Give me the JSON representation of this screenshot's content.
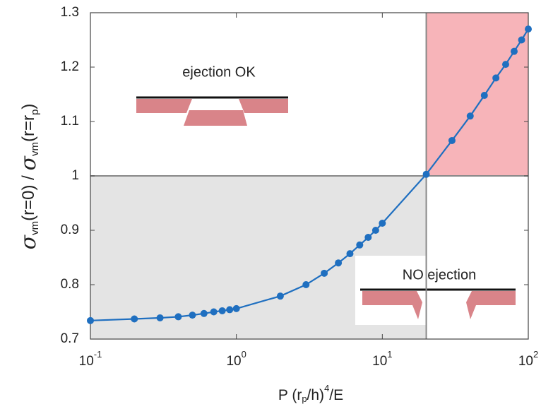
{
  "chart_data": {
    "type": "line",
    "xscale": "log",
    "xlabel": [
      "P (r",
      "p",
      "/h)",
      "4",
      "/E"
    ],
    "ylabel": [
      "σ",
      "vm",
      "(r=0)  / ",
      "σ",
      "vm",
      "(r=r",
      "p",
      ")"
    ],
    "x": [
      0.1,
      0.2,
      0.3,
      0.4,
      0.5,
      0.6,
      0.7,
      0.8,
      0.9,
      1,
      2,
      3,
      4,
      5,
      6,
      7,
      8,
      9,
      10,
      20,
      30,
      40,
      50,
      60,
      70,
      80,
      90,
      100
    ],
    "series": [
      {
        "color": "#1f6fc0",
        "values": [
          0.734,
          0.737,
          0.739,
          0.741,
          0.744,
          0.747,
          0.75,
          0.752,
          0.754,
          0.756,
          0.779,
          0.8,
          0.821,
          0.84,
          0.857,
          0.873,
          0.887,
          0.9,
          0.913,
          1.003,
          1.065,
          1.11,
          1.148,
          1.18,
          1.205,
          1.229,
          1.25,
          1.27
        ]
      }
    ],
    "xlim": [
      0.1,
      100
    ],
    "ylim": [
      0.7,
      1.3
    ],
    "xticks": [
      {
        "value": 0.1,
        "label": [
          "10",
          "-1"
        ]
      },
      {
        "value": 1,
        "label": [
          "10",
          "0"
        ]
      },
      {
        "value": 10,
        "label": [
          "10",
          "1"
        ]
      },
      {
        "value": 100,
        "label": [
          "10",
          "2"
        ]
      }
    ],
    "yticks": [
      0.7,
      0.8,
      0.9,
      1,
      1.1,
      1.2,
      1.3
    ],
    "regions": [
      {
        "xlim": [
          0.1,
          20
        ],
        "ylim": [
          0.7,
          1
        ],
        "color": "#e4e4e4"
      },
      {
        "xlim": [
          20,
          100
        ],
        "ylim": [
          1,
          1.3
        ],
        "color": "#f7b4b9"
      }
    ],
    "reference_lines": {
      "x": [
        20
      ],
      "y": [
        1
      ],
      "color": "#888888"
    },
    "annotations": [
      "ejection OK",
      "NO ejection"
    ]
  }
}
